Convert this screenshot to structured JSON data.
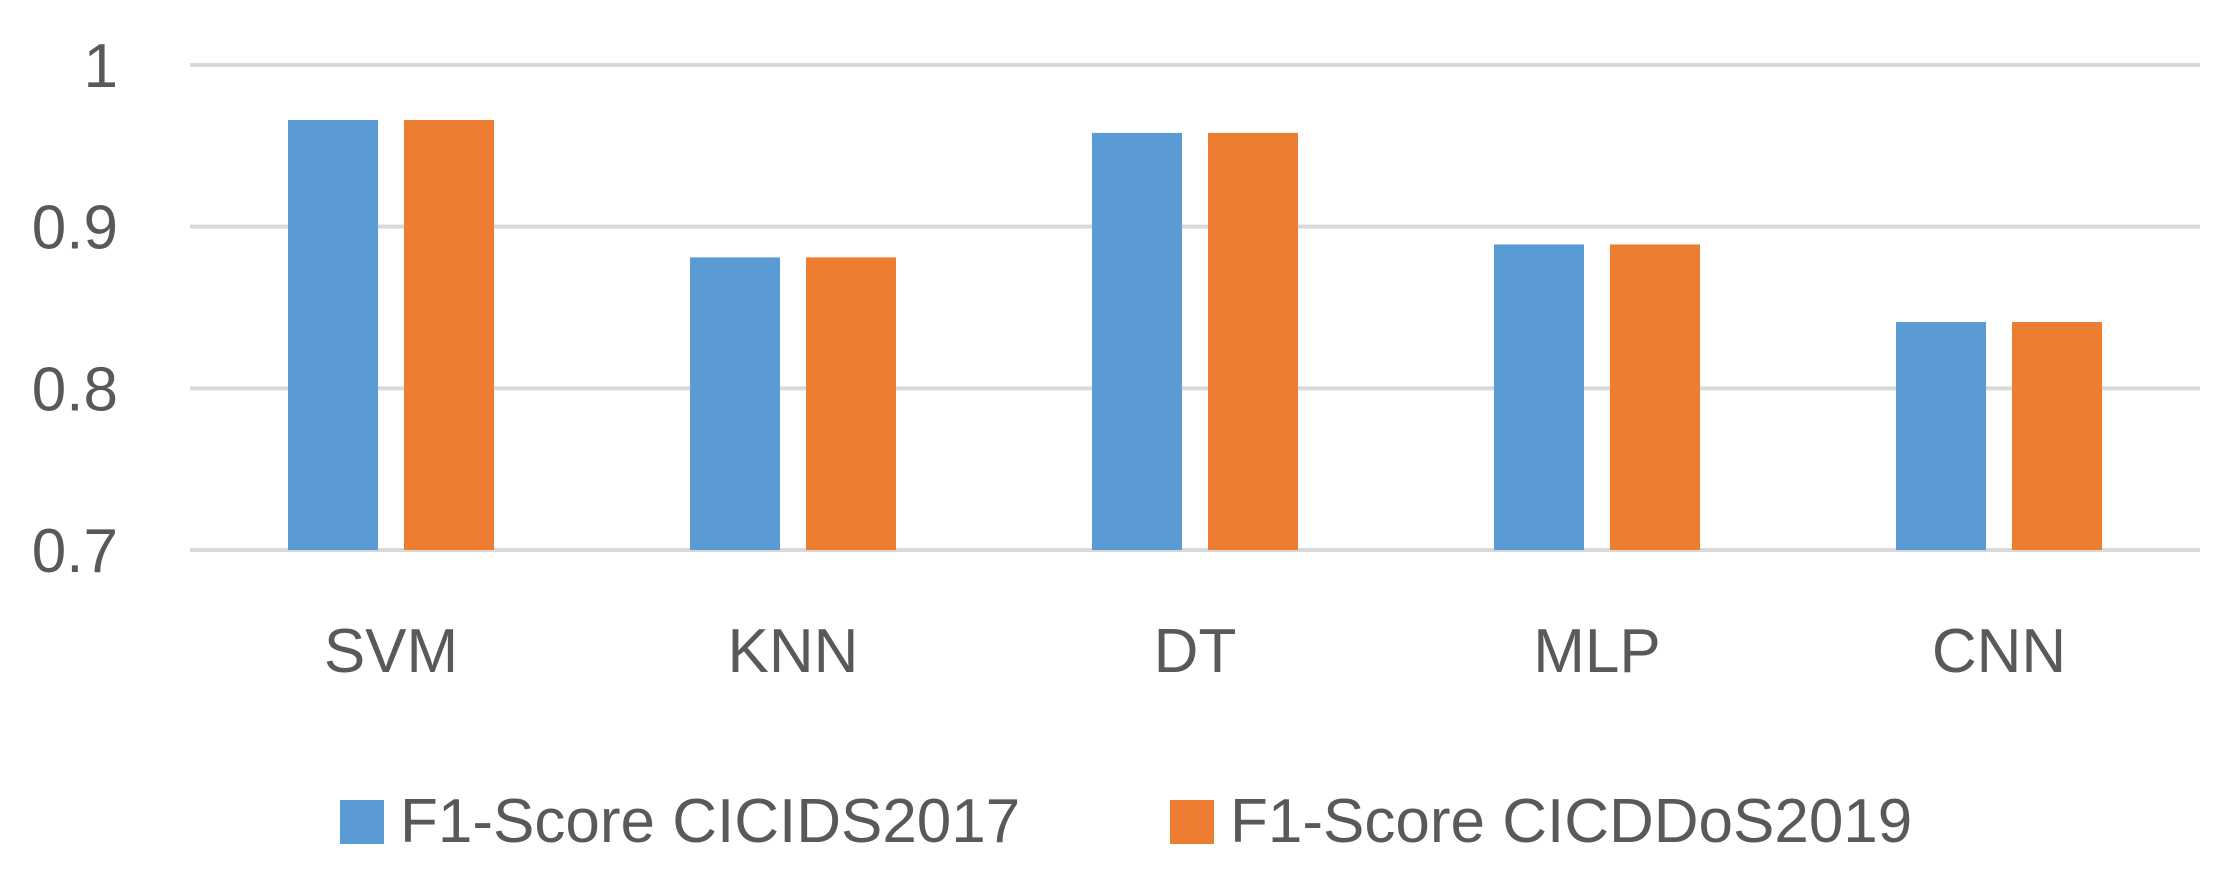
{
  "chart_data": {
    "type": "bar",
    "title": "",
    "xlabel": "",
    "ylabel": "",
    "categories": [
      "SVM",
      "KNN",
      "DT",
      "MLP",
      "CNN"
    ],
    "series": [
      {
        "name": "F1-Score CICIDS2017",
        "color": "#5B9BD5",
        "values": [
          0.966,
          0.881,
          0.958,
          0.889,
          0.841
        ]
      },
      {
        "name": "F1-Score CICDDoS2019",
        "color": "#ED7D31",
        "values": [
          0.966,
          0.881,
          0.958,
          0.889,
          0.841
        ]
      }
    ],
    "ylim": [
      0.7,
      1.0
    ],
    "yticks": [
      0.7,
      0.8,
      0.9,
      1.0
    ],
    "ytick_labels": [
      "0.7",
      "0.8",
      "0.9",
      "1"
    ],
    "grid": true,
    "legend_position": "bottom"
  }
}
